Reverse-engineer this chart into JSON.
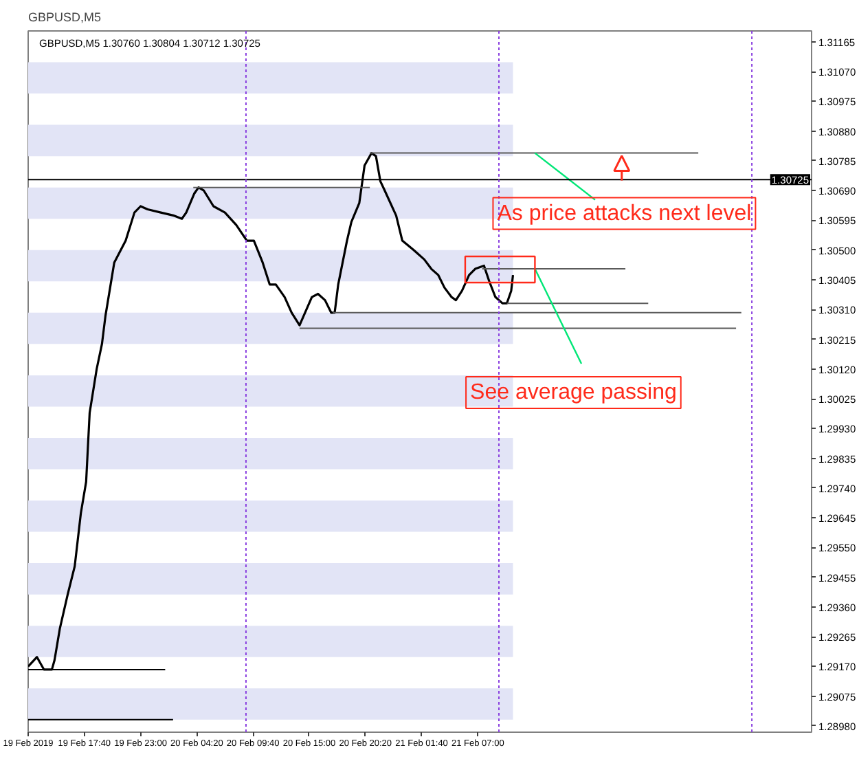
{
  "chart_data": {
    "type": "line",
    "title": "GBPUSD,M5",
    "subtitle": "GBPUSD,M5  1.30760 1.30804 1.30712 1.30725",
    "x": [
      "2019-02-19T12:20",
      "2019-02-19T13:10",
      "2019-02-19T13:50",
      "2019-02-19T14:35",
      "2019-02-19T14:50",
      "2019-02-19T15:20",
      "2019-02-19T16:05",
      "2019-02-19T16:45",
      "2019-02-19T17:20",
      "2019-02-19T17:50",
      "2019-02-19T18:10",
      "2019-02-19T18:50",
      "2019-02-19T19:20",
      "2019-02-19T19:40",
      "2019-02-19T20:30",
      "2019-02-19T21:35",
      "2019-02-19T22:25",
      "2019-02-19T23:00",
      "2019-02-19T23:40",
      "2019-02-20T00:55",
      "2019-02-20T02:10",
      "2019-02-20T02:55",
      "2019-02-20T03:20",
      "2019-02-20T04:05",
      "2019-02-20T04:30",
      "2019-02-20T05:00",
      "2019-02-20T05:55",
      "2019-02-20T07:00",
      "2019-02-20T08:05",
      "2019-02-20T09:05",
      "2019-02-20T09:45",
      "2019-02-20T10:35",
      "2019-02-20T11:15",
      "2019-02-20T11:50",
      "2019-02-20T12:40",
      "2019-02-20T13:20",
      "2019-02-20T14:05",
      "2019-02-20T15:15",
      "2019-02-20T15:50",
      "2019-02-20T16:30",
      "2019-02-20T17:05",
      "2019-02-20T17:25",
      "2019-02-20T17:45",
      "2019-02-20T18:35",
      "2019-02-20T19:00",
      "2019-02-20T19:45",
      "2019-02-20T20:15",
      "2019-02-20T20:55",
      "2019-02-20T21:20",
      "2019-02-20T21:45",
      "2019-02-20T22:10",
      "2019-02-20T23:15",
      "2019-02-20T23:50",
      "2019-02-21T00:55",
      "2019-02-21T01:55",
      "2019-02-21T02:35",
      "2019-02-21T03:15",
      "2019-02-21T03:50",
      "2019-02-21T04:30",
      "2019-02-21T04:55",
      "2019-02-21T05:30",
      "2019-02-21T06:10",
      "2019-02-21T06:45",
      "2019-02-21T07:35",
      "2019-02-21T08:05",
      "2019-02-21T08:40",
      "2019-02-21T09:20",
      "2019-02-21T09:45",
      "2019-02-21T10:10",
      "2019-02-21T10:20"
    ],
    "series": [
      {
        "color": "#000000",
        "values": [
          1.2917,
          1.292,
          1.2916,
          1.2916,
          1.2919,
          1.2929,
          1.294,
          1.2949,
          1.2966,
          1.2976,
          1.2998,
          1.3012,
          1.302,
          1.3029,
          1.3046,
          1.3053,
          1.3062,
          1.3064,
          1.3063,
          1.3062,
          1.3061,
          1.306,
          1.3062,
          1.3068,
          1.307,
          1.3069,
          1.3064,
          1.3062,
          1.3058,
          1.3053,
          1.3053,
          1.3046,
          1.3039,
          1.3039,
          1.3035,
          1.303,
          1.3026,
          1.3035,
          1.3036,
          1.3034,
          1.303,
          1.303,
          1.3039,
          1.3053,
          1.3059,
          1.3065,
          1.3077,
          1.3081,
          1.308,
          1.3072,
          1.3069,
          1.3061,
          1.3053,
          1.305,
          1.3047,
          1.3044,
          1.3042,
          1.3038,
          1.3035,
          1.3034,
          1.3037,
          1.3042,
          1.3044,
          1.3045,
          1.304,
          1.3035,
          1.3033,
          1.3033,
          1.3037,
          1.3042
        ]
      },
      {
        "type": "line",
        "color": "#000000",
        "x": [
          "2019-02-19T12:20",
          "2019-02-20T01:20"
        ],
        "values": [
          1.2916,
          1.2916
        ]
      },
      {
        "type": "line",
        "color": "#000000",
        "x": [
          "2019-02-19T12:20",
          "2019-02-20T02:05"
        ],
        "values": [
          1.29,
          1.29
        ]
      },
      {
        "type": "line",
        "color": "#5a5a5a",
        "x": [
          "2019-02-20T04:00",
          "2019-02-20T20:45"
        ],
        "values": [
          1.307,
          1.307
        ]
      },
      {
        "type": "line",
        "color": "#5a5a5a",
        "x": [
          "2019-02-20T20:45",
          "2019-02-22T03:55"
        ],
        "values": [
          1.3081,
          1.3081
        ]
      },
      {
        "type": "line",
        "color": "#5a5a5a",
        "x": [
          "2019-02-21T07:25",
          "2019-02-21T21:00"
        ],
        "values": [
          1.3044,
          1.3044
        ]
      },
      {
        "type": "line",
        "color": "#5a5a5a",
        "x": [
          "2019-02-21T09:45",
          "2019-02-21T23:10"
        ],
        "values": [
          1.3033,
          1.3033
        ]
      },
      {
        "type": "line",
        "color": "#5a5a5a",
        "x": [
          "2019-02-20T17:15",
          "2019-02-22T08:00"
        ],
        "values": [
          1.303,
          1.303
        ]
      },
      {
        "type": "line",
        "color": "#5a5a5a",
        "x": [
          "2019-02-20T14:05",
          "2019-02-22T07:30"
        ],
        "values": [
          1.3025,
          1.3025
        ]
      }
    ],
    "xlim": [
      "2019-02-19T12:20",
      "2019-02-22T14:40"
    ],
    "xticks": [
      {
        "value": "2019-02-19T12:20",
        "label": "19 Feb 2019"
      },
      {
        "value": "2019-02-19T17:40",
        "label": "19 Feb 17:40"
      },
      {
        "value": "2019-02-19T23:00",
        "label": "19 Feb 23:00"
      },
      {
        "value": "2019-02-20T04:20",
        "label": "20 Feb 04:20"
      },
      {
        "value": "2019-02-20T09:40",
        "label": "20 Feb 09:40"
      },
      {
        "value": "2019-02-20T15:00",
        "label": "20 Feb 15:00"
      },
      {
        "value": "2019-02-20T20:20",
        "label": "20 Feb 20:20"
      },
      {
        "value": "2019-02-21T01:40",
        "label": "21 Feb 01:40"
      },
      {
        "value": "2019-02-21T07:00",
        "label": "21 Feb 07:00"
      }
    ],
    "ylim": [
      1.2896,
      1.312
    ],
    "yticks": [
      {
        "value": 1.2898,
        "label": "1.28980"
      },
      1.29075,
      {
        "value": 1.2917,
        "label": "1.29170"
      },
      1.29265,
      {
        "value": 1.2936,
        "label": "1.29360"
      },
      1.29455,
      {
        "value": 1.2955,
        "label": "1.29550"
      },
      1.29645,
      {
        "value": 1.2974,
        "label": "1.29740"
      },
      1.29835,
      {
        "value": 1.2993,
        "label": "1.29930"
      },
      1.30025,
      {
        "value": 1.3012,
        "label": "1.30120"
      },
      1.30215,
      {
        "value": 1.3031,
        "label": "1.30310"
      },
      1.30405,
      {
        "value": 1.305,
        "label": "1.30500"
      },
      1.30595,
      {
        "value": 1.3069,
        "label": "1.30690"
      },
      1.30785,
      {
        "value": 1.3088,
        "label": "1.30880"
      },
      1.30975,
      {
        "value": 1.3107,
        "label": "1.31070"
      },
      1.31165
    ],
    "ref_lines": [
      {
        "axis": "y",
        "value": 1.30725,
        "label": "1.30725",
        "color": "#000000",
        "line_style": "solid"
      },
      {
        "axis": "x",
        "value": "2019-02-20T09:00",
        "color": "#8a3fe0",
        "line_style": "dotted"
      },
      {
        "axis": "x",
        "value": "2019-02-21T09:00",
        "color": "#8a3fe0",
        "line_style": "dotted"
      },
      {
        "axis": "x",
        "value": "2019-02-22T09:00",
        "color": "#8a3fe0",
        "line_style": "dotted"
      }
    ],
    "bands": [
      {
        "axis": "y",
        "from": 1.29,
        "to": 1.291,
        "color": "#e2e4f6"
      },
      {
        "axis": "y",
        "from": 1.292,
        "to": 1.293,
        "color": "#e2e4f6"
      },
      {
        "axis": "y",
        "from": 1.294,
        "to": 1.295,
        "color": "#e2e4f6"
      },
      {
        "axis": "y",
        "from": 1.296,
        "to": 1.297,
        "color": "#e2e4f6"
      },
      {
        "axis": "y",
        "from": 1.298,
        "to": 1.299,
        "color": "#e2e4f6"
      },
      {
        "axis": "y",
        "from": 1.3,
        "to": 1.301,
        "color": "#e2e4f6"
      },
      {
        "axis": "y",
        "from": 1.302,
        "to": 1.303,
        "color": "#e2e4f6"
      },
      {
        "axis": "y",
        "from": 1.304,
        "to": 1.305,
        "color": "#e2e4f6"
      },
      {
        "axis": "y",
        "from": 1.306,
        "to": 1.307,
        "color": "#e2e4f6"
      },
      {
        "axis": "y",
        "from": 1.308,
        "to": 1.309,
        "color": "#e2e4f6"
      },
      {
        "axis": "y",
        "from": 1.31,
        "to": 1.311,
        "color": "#e2e4f6"
      }
    ],
    "annotations": [
      {
        "text": "As price attacks next level",
        "x": "2019-02-21T12:25",
        "y": 1.3081
      },
      {
        "text": "See average passing",
        "x": "2019-02-21T12:25",
        "y": 1.3044
      }
    ],
    "grid": false
  }
}
